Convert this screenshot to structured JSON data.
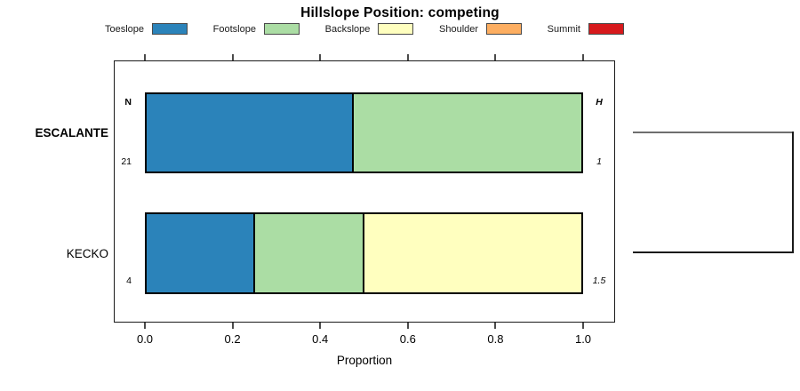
{
  "title": "Hillslope Position: competing",
  "legend": {
    "items": [
      {
        "label": "Toeslope",
        "color": "#2B83BA"
      },
      {
        "label": "Footslope",
        "color": "#ABDDA4"
      },
      {
        "label": "Backslope",
        "color": "#FFFFBF"
      },
      {
        "label": "Shoulder",
        "color": "#FDAE61"
      },
      {
        "label": "Summit",
        "color": "#D7191C"
      }
    ]
  },
  "chart_data": {
    "type": "bar",
    "orientation": "horizontal",
    "stacked": true,
    "title": "Hillslope Position: competing",
    "xlabel": "Proportion",
    "xlim": [
      0,
      1
    ],
    "x_ticks": [
      0.0,
      0.2,
      0.4,
      0.6,
      0.8,
      1.0
    ],
    "x_tick_labels": [
      "0.0",
      "0.2",
      "0.4",
      "0.6",
      "0.8",
      "1.0"
    ],
    "categories": [
      "Toeslope",
      "Footslope",
      "Backslope",
      "Shoulder",
      "Summit"
    ],
    "colors": {
      "Toeslope": "#2B83BA",
      "Footslope": "#ABDDA4",
      "Backslope": "#FFFFBF",
      "Shoulder": "#FDAE61",
      "Summit": "#D7191C"
    },
    "annotations": {
      "n_header": "N",
      "h_header": "H"
    },
    "rows": [
      {
        "label": "ESCALANTE",
        "bold": true,
        "n": "21",
        "h": "1",
        "segments": [
          {
            "name": "Toeslope",
            "value": 0.476
          },
          {
            "name": "Footslope",
            "value": 0.524
          }
        ]
      },
      {
        "label": "KECKO",
        "bold": false,
        "n": "4",
        "h": "1.5",
        "segments": [
          {
            "name": "Toeslope",
            "value": 0.25
          },
          {
            "name": "Footslope",
            "value": 0.25
          },
          {
            "name": "Backslope",
            "value": 0.5
          }
        ]
      }
    ],
    "legend_position": "top",
    "grid": false,
    "dendrogram": {
      "present": true,
      "joins": [
        "ESCALANTE",
        "KECKO"
      ]
    }
  }
}
